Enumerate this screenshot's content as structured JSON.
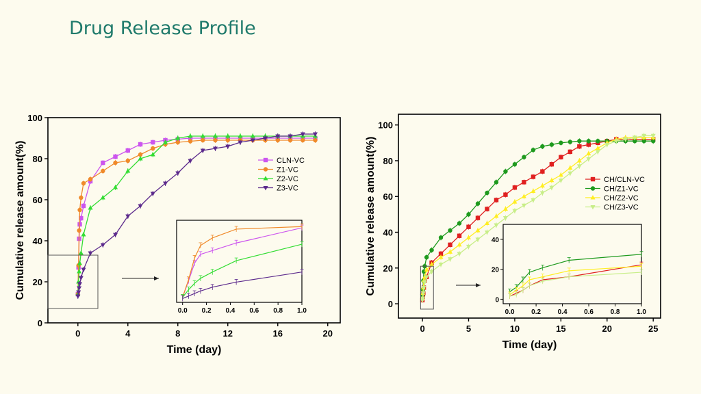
{
  "page": {
    "title": "Drug Release Profile",
    "background": "#fdfbee",
    "title_color": "#1f7a6b"
  },
  "chart_data": [
    {
      "type": "line",
      "xlabel": "Time (day)",
      "ylabel": "Cumulative release amount(%)",
      "xlim": [
        -2.4,
        21
      ],
      "ylim": [
        0,
        100
      ],
      "xticks": [
        0,
        4,
        8,
        12,
        16,
        20
      ],
      "yticks": [
        0,
        20,
        40,
        60,
        80,
        100
      ],
      "legend_position": "right-middle",
      "zoom_box": {
        "x": [
          -2.4,
          1.6
        ],
        "y": [
          7,
          33
        ]
      },
      "series": [
        {
          "name": "CLN-VC",
          "color": "#cc55ee",
          "marker": "square",
          "x": [
            0,
            0.05,
            0.1,
            0.15,
            0.25,
            0.45,
            1,
            2,
            3,
            4,
            5,
            6,
            7,
            8,
            9,
            10,
            11,
            12,
            13,
            14,
            15,
            16,
            17,
            18,
            19
          ],
          "y": [
            14,
            27,
            41,
            48,
            51,
            57,
            69,
            78,
            81,
            84,
            87,
            88,
            89,
            89.5,
            90,
            90,
            90,
            90,
            90,
            90,
            90,
            90,
            90,
            90,
            90
          ]
        },
        {
          "name": "Z1-VC",
          "color": "#f08a2a",
          "marker": "circle",
          "x": [
            0,
            0.05,
            0.1,
            0.15,
            0.25,
            0.45,
            1,
            2,
            3,
            4,
            5,
            6,
            7,
            8,
            9,
            10,
            11,
            12,
            13,
            14,
            15,
            16,
            17,
            18,
            19
          ],
          "y": [
            14,
            28,
            45,
            55,
            61,
            68,
            70,
            74,
            78,
            79,
            82,
            85,
            87,
            88,
            88.5,
            89,
            89,
            89,
            89,
            89,
            89,
            89,
            89,
            89,
            89
          ]
        },
        {
          "name": "Z2-VC",
          "color": "#33dd33",
          "marker": "triangle-up",
          "x": [
            0,
            0.05,
            0.1,
            0.15,
            0.25,
            0.45,
            1,
            2,
            3,
            4,
            5,
            6,
            7,
            8,
            9,
            10,
            11,
            12,
            13,
            14,
            15,
            16,
            17,
            18,
            19
          ],
          "y": [
            14,
            20,
            25,
            29,
            34,
            43,
            56,
            61,
            66,
            74,
            80,
            82,
            88,
            90,
            91,
            91,
            91,
            91,
            91,
            91,
            91,
            91,
            91,
            91,
            91
          ]
        },
        {
          "name": "Z3-VC",
          "color": "#5c2a8c",
          "marker": "triangle-down",
          "x": [
            0,
            0.05,
            0.1,
            0.15,
            0.25,
            0.45,
            1,
            2,
            3,
            4,
            5,
            6,
            7,
            8,
            9,
            10,
            11,
            12,
            13,
            14,
            15,
            16,
            17,
            18,
            19
          ],
          "y": [
            13,
            15,
            17,
            19,
            22,
            26,
            34,
            38,
            43,
            52,
            57,
            63,
            68,
            73,
            79,
            84,
            85,
            86,
            88,
            89,
            90,
            91,
            91,
            92,
            92
          ]
        }
      ],
      "inset": {
        "xlim": [
          -0.05,
          1
        ],
        "ylim": [
          10,
          75
        ],
        "xticks": [
          0.0,
          0.2,
          0.4,
          0.6,
          0.8,
          1.0
        ],
        "series_x": [
          0,
          0.05,
          0.1,
          0.15,
          0.25,
          0.45,
          1
        ],
        "series_y": [
          [
            14,
            27,
            41,
            48,
            51,
            57,
            69
          ],
          [
            14,
            28,
            45,
            55,
            61,
            68,
            70
          ],
          [
            14,
            20,
            25,
            29,
            34,
            43,
            56
          ],
          [
            13,
            15,
            17,
            19,
            22,
            26,
            34
          ]
        ]
      }
    },
    {
      "type": "line",
      "xlabel": "Time (day)",
      "ylabel": "Cumulative release amount(%)",
      "xlim": [
        -2.6,
        25.8
      ],
      "ylim": [
        -8,
        106
      ],
      "xticks": [
        0,
        5,
        10,
        15,
        20,
        25
      ],
      "yticks": [
        0,
        20,
        40,
        60,
        80,
        100
      ],
      "legend_position": "right-middle",
      "zoom_box": {
        "x": [
          -0.2,
          1.2
        ],
        "y": [
          -3,
          21
        ]
      },
      "series": [
        {
          "name": "CH/CLN-VC",
          "color": "#e02020",
          "marker": "square",
          "x": [
            0,
            0.05,
            0.1,
            0.15,
            0.25,
            0.45,
            1,
            2,
            3,
            4,
            5,
            6,
            7,
            8,
            9,
            10,
            11,
            12,
            13,
            14,
            15,
            16,
            17,
            18,
            19,
            20,
            21,
            22,
            23,
            24,
            25
          ],
          "y": [
            2,
            4,
            6,
            9,
            13,
            15,
            23,
            28,
            33,
            38,
            43,
            48,
            53,
            58,
            61,
            65,
            68,
            71,
            74,
            78,
            82,
            85,
            88,
            89,
            90,
            91,
            92,
            92,
            92,
            92,
            92
          ]
        },
        {
          "name": "CH/Z1-VC",
          "color": "#1e9a1e",
          "marker": "circle",
          "x": [
            0,
            0.05,
            0.1,
            0.15,
            0.25,
            0.45,
            1,
            2,
            3,
            4,
            5,
            6,
            7,
            8,
            9,
            10,
            11,
            12,
            13,
            14,
            15,
            16,
            17,
            18,
            19,
            20,
            21,
            22,
            23,
            24,
            25
          ],
          "y": [
            5,
            8,
            13,
            18,
            21,
            26,
            30,
            37,
            41,
            45,
            50,
            56,
            62,
            68,
            74,
            78,
            82,
            86,
            88,
            89,
            90,
            90.5,
            91,
            91,
            91,
            91,
            91,
            91,
            91,
            91,
            91
          ]
        },
        {
          "name": "CH/Z2-VC",
          "color": "#ffee22",
          "marker": "triangle-up",
          "x": [
            0,
            0.05,
            0.1,
            0.15,
            0.25,
            0.45,
            1,
            2,
            3,
            4,
            5,
            6,
            7,
            8,
            9,
            10,
            11,
            12,
            13,
            14,
            15,
            16,
            17,
            18,
            19,
            20,
            21,
            22,
            23,
            24,
            25
          ],
          "y": [
            3,
            6,
            9,
            13,
            15,
            19,
            22,
            26,
            29,
            33,
            37,
            41,
            45,
            49,
            53,
            57,
            60,
            63,
            66,
            69,
            72,
            76,
            80,
            84,
            87,
            90,
            92,
            93,
            93,
            93,
            93
          ]
        },
        {
          "name": "CH/Z3-VC",
          "color": "#c8ee88",
          "marker": "triangle-down",
          "x": [
            0,
            0.05,
            0.1,
            0.15,
            0.25,
            0.45,
            1,
            2,
            3,
            4,
            5,
            6,
            7,
            8,
            9,
            10,
            11,
            12,
            13,
            14,
            15,
            16,
            17,
            18,
            19,
            20,
            21,
            22,
            23,
            24,
            25
          ],
          "y": [
            2,
            3,
            6,
            9,
            12,
            15,
            18,
            22,
            25,
            28,
            32,
            36,
            40,
            44,
            48,
            52,
            55,
            58,
            62,
            65,
            69,
            73,
            77,
            81,
            85,
            89,
            91,
            92,
            93,
            94,
            94
          ]
        }
      ],
      "inset": {
        "xlim": [
          -0.05,
          1
        ],
        "ylim": [
          -3,
          50
        ],
        "xticks": [
          0.0,
          0.2,
          0.4,
          0.6,
          0.8,
          1.0
        ],
        "yticks": [
          0,
          20,
          40
        ],
        "series_x": [
          0,
          0.05,
          0.1,
          0.15,
          0.25,
          0.45,
          1
        ],
        "series_y": [
          [
            2,
            4,
            6,
            9,
            13,
            15,
            23
          ],
          [
            5,
            8,
            13,
            18,
            21,
            26,
            30
          ],
          [
            3,
            6,
            9,
            13,
            15,
            19,
            22
          ],
          [
            2,
            3,
            6,
            9,
            12,
            15,
            18
          ]
        ]
      }
    }
  ]
}
